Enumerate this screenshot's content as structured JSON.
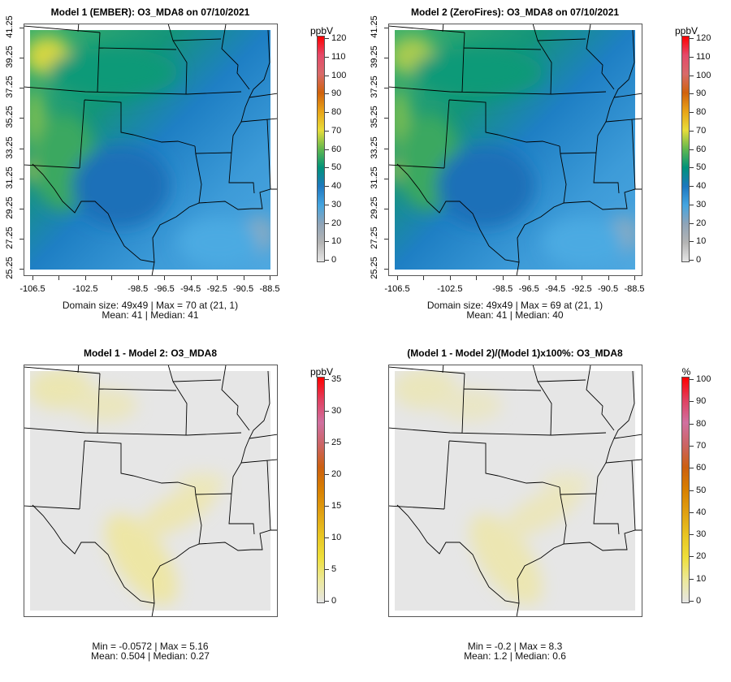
{
  "chart_data": [
    {
      "type": "heatmap",
      "title": "Model 1 (EMBER): O3_MDA8 on 07/10/2021",
      "unit": "ppbV",
      "colorbar_ticks": [
        "0",
        "10",
        "20",
        "30",
        "40",
        "50",
        "60",
        "70",
        "80",
        "90",
        "100",
        "110",
        "120"
      ],
      "colorbar_range": [
        0,
        120
      ],
      "lon_ticks": [
        "-106.5",
        "-102.5",
        "-98.5",
        "-96.5",
        "-94.5",
        "-92.5",
        "-90.5",
        "-88.5"
      ],
      "lat_ticks": [
        "41.25",
        "39.25",
        "37.25",
        "35.25",
        "33.25",
        "31.25",
        "29.25",
        "27.25",
        "25.25"
      ],
      "stats_line1": "Domain size: 49x49 | Max = 70 at (21, 1)",
      "stats_line2": "Mean: 41 |  Median: 41",
      "field": "absolute"
    },
    {
      "type": "heatmap",
      "title": "Model 2 (ZeroFires): O3_MDA8 on 07/10/2021",
      "unit": "ppbV",
      "colorbar_ticks": [
        "0",
        "10",
        "20",
        "30",
        "40",
        "50",
        "60",
        "70",
        "80",
        "90",
        "100",
        "110",
        "120"
      ],
      "colorbar_range": [
        0,
        120
      ],
      "lon_ticks": [
        "-106.5",
        "-102.5",
        "-98.5",
        "-96.5",
        "-94.5",
        "-92.5",
        "-90.5",
        "-88.5"
      ],
      "lat_ticks": [
        "41.25",
        "39.25",
        "37.25",
        "35.25",
        "33.25",
        "31.25",
        "29.25",
        "27.25",
        "25.25"
      ],
      "stats_line1": "Domain size: 49x49 | Max = 69 at (21, 1)",
      "stats_line2": "Mean: 41 |  Median: 40",
      "field": "absolute2"
    },
    {
      "type": "heatmap",
      "title": "Model 1 - Model 2: O3_MDA8",
      "unit": "ppbV",
      "colorbar_ticks": [
        "0",
        "5",
        "10",
        "15",
        "20",
        "25",
        "30",
        "35"
      ],
      "colorbar_range": [
        0,
        35
      ],
      "stats_line1": "Min = -0.0572 | Max = 5.16",
      "stats_line2": "Mean: 0.504 |  Median: 0.27",
      "field": "diff"
    },
    {
      "type": "heatmap",
      "title": "(Model 1 - Model 2)/(Model 1)x100%: O3_MDA8",
      "unit": "%",
      "colorbar_ticks": [
        "0",
        "10",
        "20",
        "30",
        "40",
        "50",
        "60",
        "70",
        "80",
        "90",
        "100"
      ],
      "colorbar_range": [
        0,
        100
      ],
      "stats_line1": "Min = -0.2 | Max = 8.3",
      "stats_line2": "Mean: 1.2 |  Median: 0.6",
      "field": "pct"
    }
  ],
  "colors": {
    "abs_scale": [
      "#e6e6e6",
      "#b4b4b4",
      "#8fa4b8",
      "#45a5e0",
      "#1e78c0",
      "#00927a",
      "#62b84e",
      "#e8dc3a",
      "#e8a418",
      "#d0620c",
      "#d86a6a",
      "#e44a6a",
      "#ff0000"
    ],
    "diff_scale": [
      "#e6e6e6",
      "#ece89a",
      "#eedf3a",
      "#e8c422",
      "#e0a012",
      "#d88000",
      "#cc6010",
      "#cc6464",
      "#d070a0",
      "#e04060",
      "#ff0000"
    ]
  }
}
